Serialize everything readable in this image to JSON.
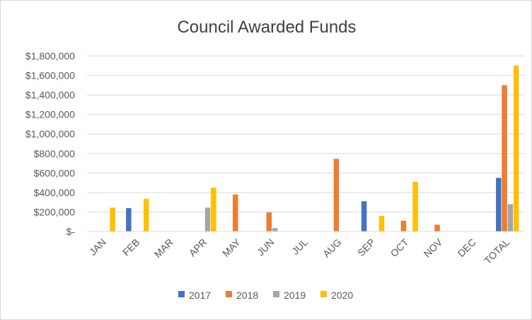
{
  "chart_data": {
    "type": "bar",
    "title": "Council Awarded Funds",
    "xlabel": "",
    "ylabel": "",
    "categories": [
      "JAN",
      "FEB",
      "MAR",
      "APR",
      "MAY",
      "JUN",
      "JUL",
      "AUG",
      "SEP",
      "OCT",
      "NOV",
      "DEC",
      "TOTAL"
    ],
    "series": [
      {
        "name": "2017",
        "color": "#4472c4",
        "values": [
          0,
          240000,
          0,
          0,
          0,
          0,
          0,
          0,
          310000,
          0,
          0,
          0,
          550000
        ]
      },
      {
        "name": "2018",
        "color": "#ed7d31",
        "values": [
          0,
          0,
          0,
          0,
          380000,
          195000,
          0,
          745000,
          0,
          110000,
          70000,
          0,
          1500000
        ]
      },
      {
        "name": "2019",
        "color": "#a5a5a5",
        "values": [
          0,
          0,
          0,
          245000,
          0,
          35000,
          0,
          0,
          0,
          0,
          0,
          0,
          280000
        ]
      },
      {
        "name": "2020",
        "color": "#ffc000",
        "values": [
          245000,
          335000,
          0,
          450000,
          0,
          0,
          0,
          0,
          160000,
          510000,
          0,
          0,
          1700000
        ]
      }
    ],
    "ylim": [
      0,
      1800000
    ],
    "yticks": [
      0,
      200000,
      400000,
      600000,
      800000,
      1000000,
      1200000,
      1400000,
      1600000,
      1800000
    ],
    "ytick_labels": [
      "$-",
      "$200,000",
      "$400,000",
      "$600,000",
      "$800,000",
      "$1,000,000",
      "$1,200,000",
      "$1,400,000",
      "$1,600,000",
      "$1,800,000"
    ],
    "grid": true,
    "legend_position": "bottom",
    "colors": {
      "gridline": "#d9d9d9",
      "axis": "#d9d9d9",
      "text": "#595959",
      "title": "#404040"
    }
  }
}
